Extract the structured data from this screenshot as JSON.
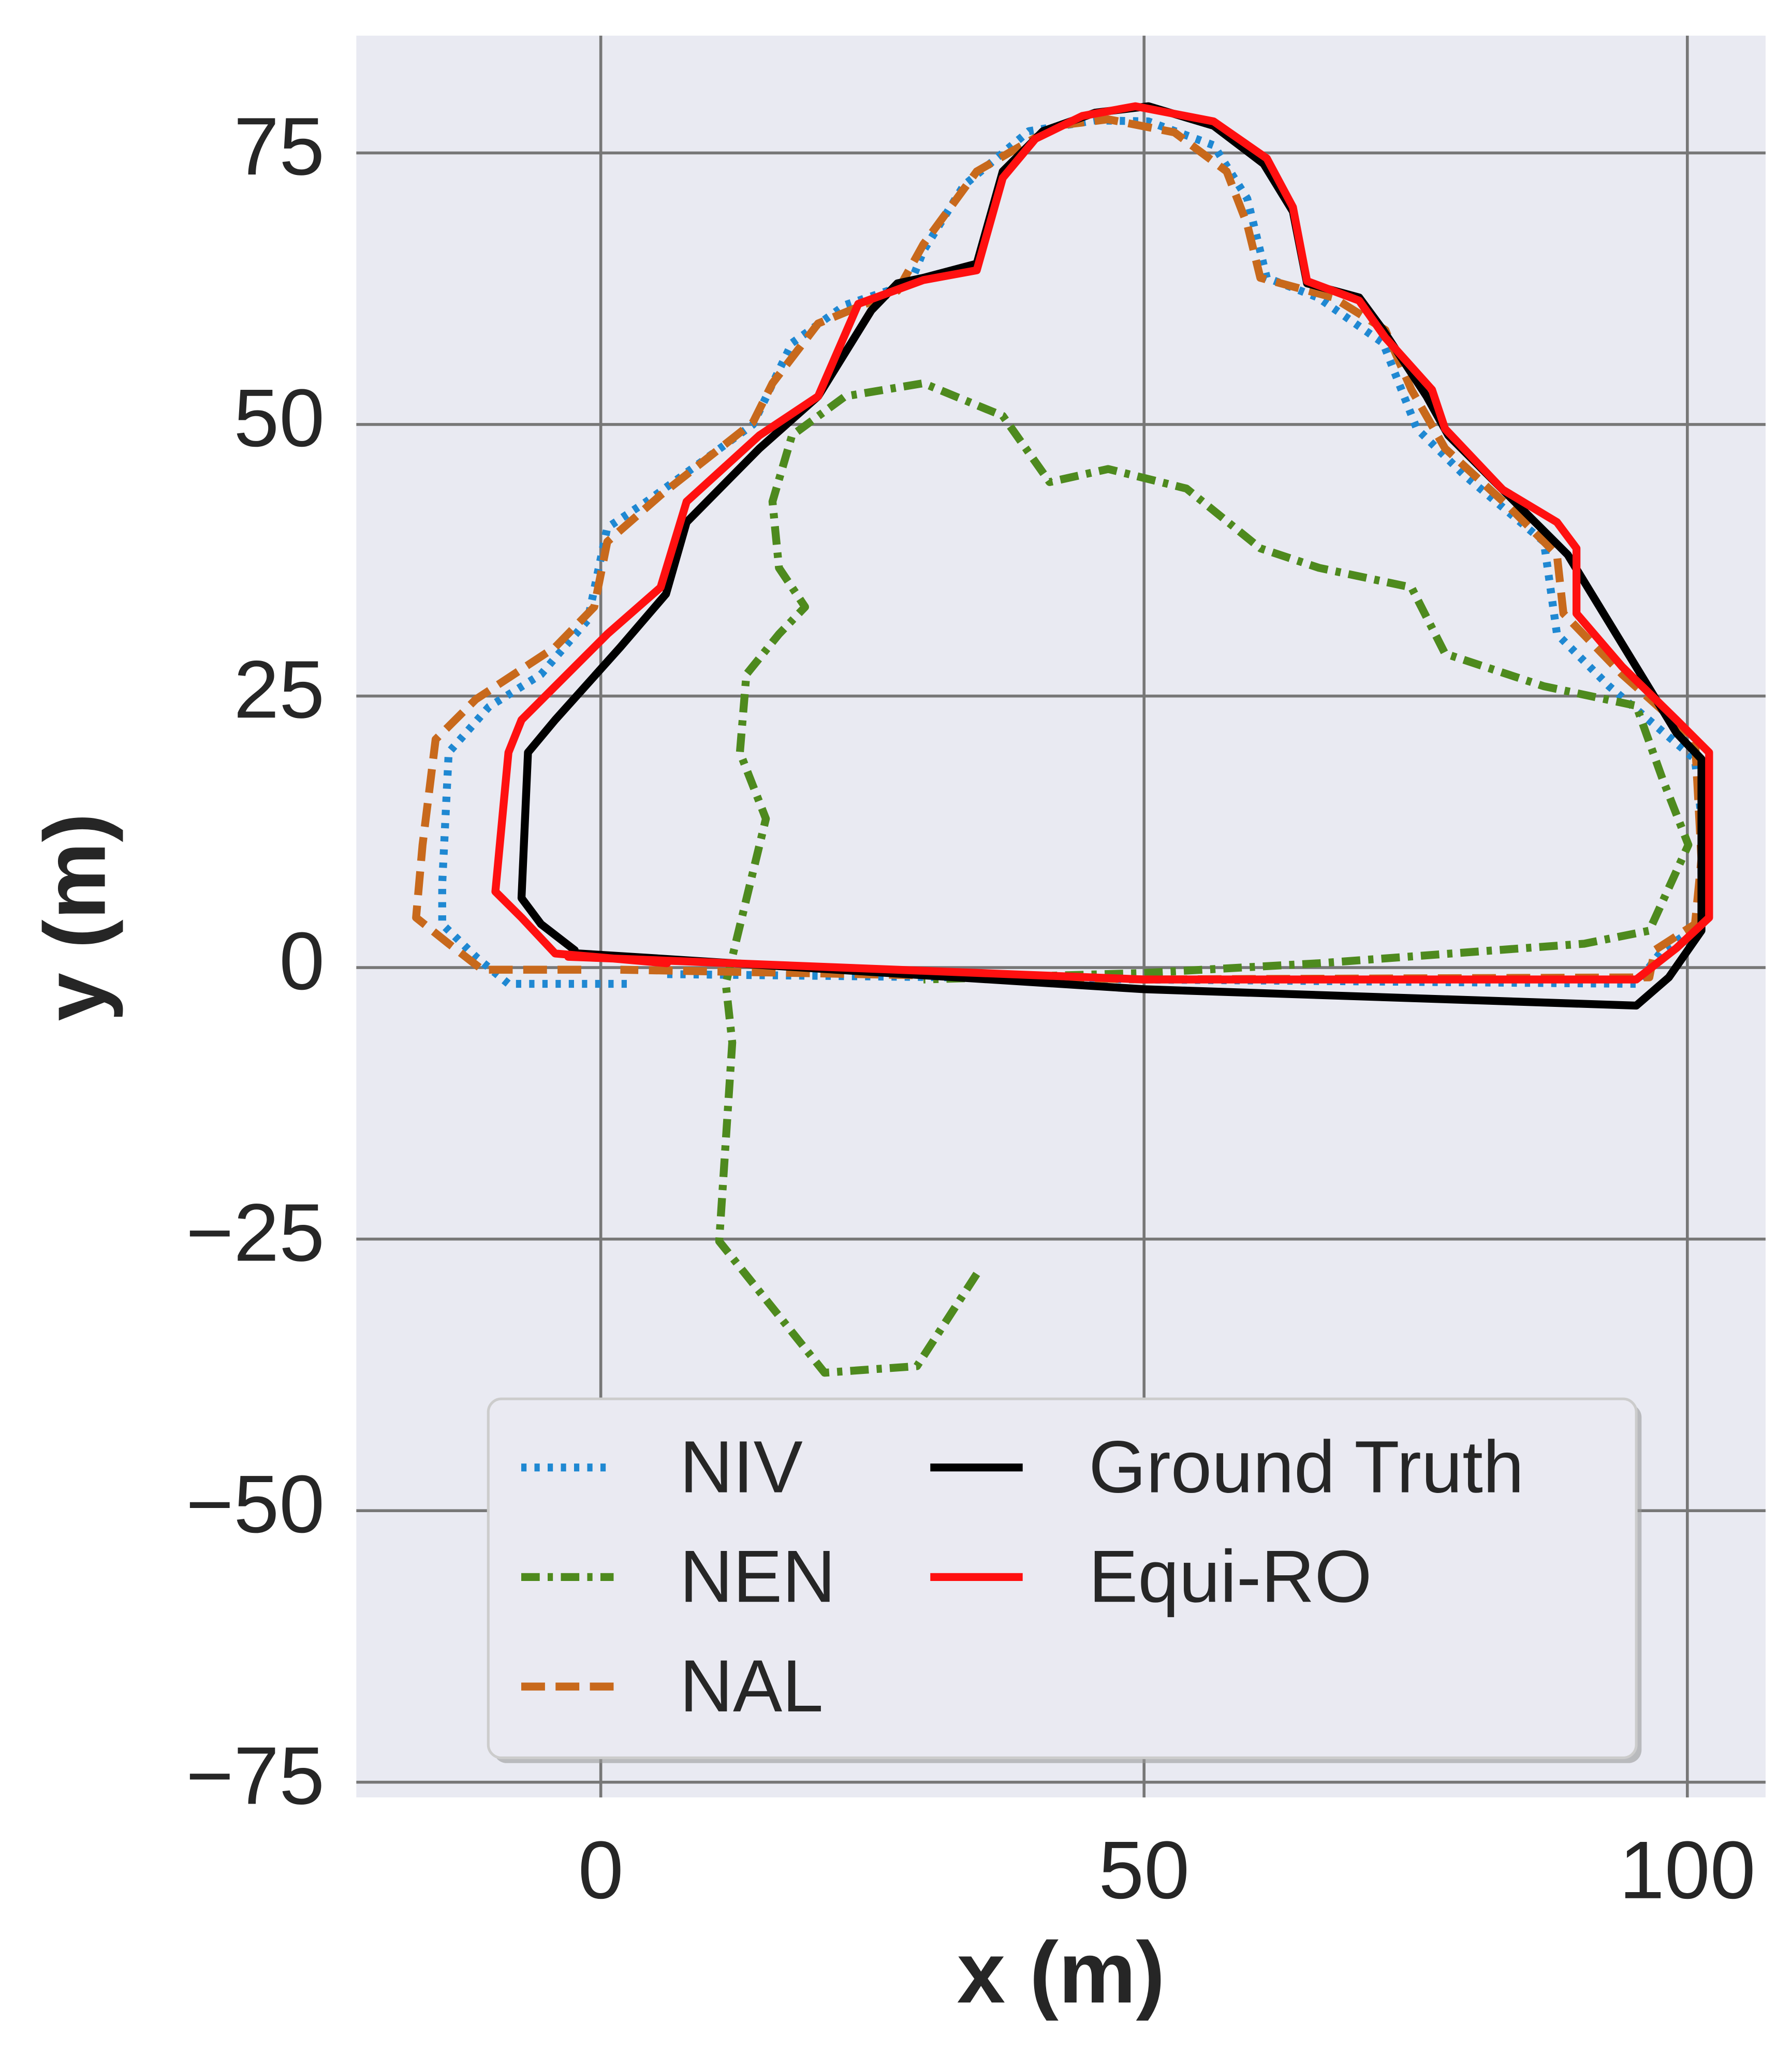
{
  "chart_data": {
    "type": "line",
    "xlabel": "x (m)",
    "ylabel": "y (m)",
    "xlim": [
      -22.5,
      107.2
    ],
    "ylim": [
      -76.4,
      85.8
    ],
    "xticks": [
      0,
      50,
      100
    ],
    "yticks": [
      {
        "value": -75,
        "label": "−75"
      },
      {
        "value": -50,
        "label": "−50"
      },
      {
        "value": -25,
        "label": "−25"
      },
      0,
      25,
      50,
      75
    ],
    "grid": true,
    "legend": "lower center",
    "series": [
      {
        "name": "NIV",
        "color": "#1f88d2",
        "linestyle": "dotted",
        "x": [
          2.4,
          -8.5,
          -11.5,
          -14.6,
          -14.6,
          -14,
          -10.3,
          -5.5,
          -1.2,
          0.6,
          4.2,
          14,
          17.6,
          22.5,
          28.5,
          29.7,
          33.4,
          39.4,
          45.5,
          50.4,
          56.4,
          59.5,
          61.3,
          66,
          72,
          75.1,
          79.5,
          86.8,
          88,
          92.8,
          100.7,
          101.3,
          101.3,
          97.7,
          95.3,
          50,
          5.5
        ],
        "y": [
          -1.5,
          -1.5,
          1,
          4,
          7.7,
          19.8,
          24,
          27,
          32,
          40.5,
          42.9,
          50,
          57.5,
          61,
          63,
          66,
          72,
          77,
          78,
          77.9,
          75.7,
          70.8,
          63.5,
          61.7,
          57.5,
          49.6,
          45.3,
          39.2,
          30.7,
          25.9,
          19.2,
          13.7,
          4,
          1.6,
          -1.5,
          -1.1,
          -0.6
        ]
      },
      {
        "name": "NEN",
        "color": "#4e8a1e",
        "linestyle": "dashdot",
        "x": [
          34.6,
          29.1,
          20.6,
          10.9,
          12.1,
          11.5,
          15.2,
          12.8,
          13.4,
          16.4,
          18.8,
          16.4,
          15.8,
          17.6,
          22.5,
          29.7,
          37,
          41.3,
          46.7,
          53.9,
          60.7,
          66.1,
          74.6,
          77.7,
          86.8,
          95.3,
          97.7,
          100.1,
          96.5,
          90.5,
          66.1,
          50,
          29.7
        ],
        "y": [
          -28.2,
          -36.7,
          -37.3,
          -25.2,
          -6.9,
          -1.5,
          13.7,
          19.8,
          27,
          30.7,
          33.2,
          36.8,
          42.9,
          49,
          52.6,
          53.8,
          50.8,
          44.7,
          45.9,
          44.1,
          38.6,
          36.8,
          35,
          28.9,
          25.9,
          24.1,
          17.4,
          11.3,
          3.4,
          2.2,
          0.4,
          -0.5,
          -1.1
        ]
      },
      {
        "name": "NAL",
        "color": "#c8691c",
        "linestyle": "dashed",
        "x": [
          -1.8,
          -10.9,
          -14,
          -17,
          -16.4,
          -15.2,
          -11.5,
          -4.2,
          -0.6,
          0.6,
          5.5,
          14,
          15.8,
          20,
          27.3,
          29.7,
          34.6,
          41.9,
          46.7,
          52.8,
          57.6,
          59.5,
          60.7,
          67.4,
          72.2,
          74.6,
          77.7,
          83.7,
          88,
          88.6,
          94,
          100.7,
          101.3,
          100.7,
          97,
          96.5,
          50,
          1.8
        ],
        "y": [
          -0.2,
          -0.2,
          2.2,
          4.6,
          11.3,
          21,
          24.7,
          29.5,
          33.2,
          39.2,
          43.5,
          50.2,
          53.8,
          59.3,
          62.3,
          66.6,
          73.3,
          77.5,
          78.1,
          76.9,
          73.3,
          68.4,
          63.5,
          61.7,
          58.7,
          53.2,
          47.8,
          42.3,
          38,
          32.6,
          27,
          21,
          10,
          4,
          1.6,
          -0.9,
          -1.1,
          -0.2
        ]
      },
      {
        "name": "Ground Truth",
        "color": "#000000",
        "linestyle": "solid",
        "x": [
          -2,
          50,
          95.3,
          98.3,
          101.3,
          101.3,
          99,
          89,
          86,
          78,
          76,
          72,
          69.8,
          65,
          63.7,
          61,
          56.4,
          50.4,
          45.5,
          40.7,
          37,
          34.6,
          29.7,
          27.3,
          24.9,
          20,
          14.6,
          7.9,
          6,
          1.8,
          -4.2,
          -6.7,
          -7.3,
          -5.5,
          -2.4
        ],
        "y": [
          1.3,
          -2,
          -3.5,
          -0.9,
          3.4,
          19.2,
          21.6,
          38,
          41,
          49,
          52.6,
          58.7,
          61.7,
          63,
          69.6,
          74,
          77.5,
          79.3,
          78.7,
          77,
          73.3,
          64.8,
          63.5,
          63,
          60.5,
          52.6,
          47.8,
          41,
          34.4,
          29.5,
          22.8,
          19.8,
          6.4,
          4,
          1.6
        ]
      },
      {
        "name": "Equi-RO",
        "color": "#ff1010",
        "linestyle": "solid",
        "x": [
          -3,
          50,
          95.3,
          99,
          102,
          102,
          99,
          94,
          89.8,
          89.8,
          88,
          83,
          77.7,
          76.5,
          72.2,
          69.8,
          65,
          63.7,
          61.3,
          56.4,
          49.2,
          44.3,
          40,
          37,
          34.6,
          29.7,
          23.7,
          20,
          14.6,
          7.9,
          5.5,
          0.6,
          -7.3,
          -8.5,
          -9.7,
          -7.3,
          -4.2,
          6.1
        ],
        "y": [
          1,
          -1.1,
          -1.1,
          1.8,
          4.6,
          19.8,
          22.8,
          27.7,
          32.6,
          38.6,
          41,
          44,
          49.6,
          53.2,
          58,
          61.4,
          63.2,
          70,
          74.5,
          77.9,
          79.3,
          78.4,
          76.3,
          72.7,
          64.2,
          63.3,
          61.1,
          52.6,
          49,
          42.9,
          35,
          30.7,
          22.8,
          19.8,
          7,
          4.6,
          1.3,
          0.4
        ]
      }
    ]
  }
}
